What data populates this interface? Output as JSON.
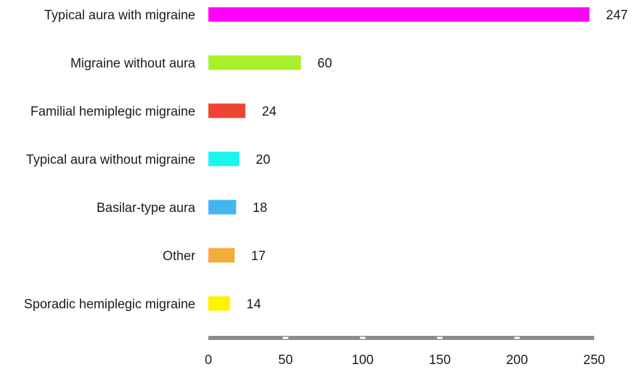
{
  "chart_data": {
    "type": "bar",
    "orientation": "horizontal",
    "categories": [
      "Typical aura with migraine",
      "Migraine without aura",
      "Familial hemiplegic migraine",
      "Typical aura without migraine",
      "Basilar-type aura",
      "Other",
      "Sporadic hemiplegic migraine"
    ],
    "values": [
      247,
      60,
      24,
      20,
      18,
      17,
      14
    ],
    "value_labels": [
      "247",
      "60",
      "24",
      "20",
      "18",
      "17",
      "14"
    ],
    "colors": [
      "#ff00ff",
      "#a8f02a",
      "#ee4433",
      "#1af5f0",
      "#45b5f2",
      "#f2ac3a",
      "#fff200"
    ],
    "xlim": [
      0,
      250
    ],
    "xticks": [
      0,
      50,
      100,
      150,
      200,
      250
    ],
    "xtick_labels": [
      "0",
      "50",
      "100",
      "150",
      "200",
      "250"
    ],
    "grid": false,
    "legend": "none",
    "axis_color": "#8c8c8c"
  }
}
